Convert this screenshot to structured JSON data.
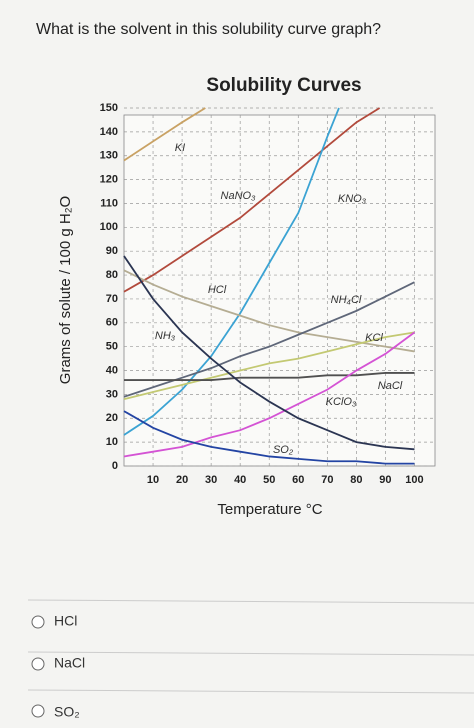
{
  "question": "What is the solvent in this solubility curve graph?",
  "options": [
    "HCl",
    "NaCl",
    "SO₂"
  ],
  "chart_data": {
    "type": "line",
    "title": "Solubility Curves",
    "x_label": "Temperature °C",
    "y_label": "Grams of solute / 100 g H₂O",
    "xlim": [
      0,
      105
    ],
    "ylim": [
      0,
      150
    ],
    "xticks": [
      10,
      20,
      30,
      40,
      50,
      60,
      70,
      80,
      90,
      100
    ],
    "yticks": [
      0,
      10,
      20,
      30,
      40,
      50,
      60,
      70,
      80,
      90,
      100,
      110,
      120,
      130,
      140,
      150
    ],
    "grid": true,
    "series": [
      {
        "name": "KI",
        "color": "#c9a264",
        "x": [
          0,
          10,
          20,
          28
        ],
        "values": [
          128,
          136,
          144,
          150
        ]
      },
      {
        "name": "NaNO₃",
        "color": "#b24a3c",
        "x": [
          0,
          10,
          20,
          30,
          40,
          50,
          60,
          70,
          80,
          88
        ],
        "values": [
          73,
          80,
          88,
          96,
          104,
          114,
          124,
          134,
          144,
          150
        ]
      },
      {
        "name": "KNO₃",
        "color": "#3ba3d3",
        "x": [
          0,
          10,
          20,
          30,
          40,
          50,
          60,
          70,
          74
        ],
        "values": [
          13,
          21,
          32,
          46,
          64,
          85,
          106,
          138,
          150
        ]
      },
      {
        "name": "HCl",
        "color": "#b5ad93",
        "x": [
          0,
          10,
          20,
          30,
          40,
          50,
          60,
          70,
          80,
          90,
          100
        ],
        "values": [
          82,
          76,
          71,
          67,
          63,
          59,
          56,
          54,
          52,
          50,
          48
        ]
      },
      {
        "name": "NH₄Cl",
        "color": "#5f6779",
        "x": [
          0,
          10,
          20,
          30,
          40,
          50,
          60,
          70,
          80,
          90,
          100
        ],
        "values": [
          29,
          33,
          37,
          41,
          46,
          50,
          55,
          60,
          65,
          71,
          77
        ]
      },
      {
        "name": "KCl",
        "color": "#c3c972",
        "x": [
          0,
          10,
          20,
          30,
          40,
          50,
          60,
          70,
          80,
          90,
          100
        ],
        "values": [
          28,
          31,
          34,
          37,
          40,
          43,
          45,
          48,
          51,
          54,
          56
        ]
      },
      {
        "name": "NaCl",
        "color": "#505050",
        "x": [
          0,
          10,
          20,
          30,
          40,
          50,
          60,
          70,
          80,
          90,
          100
        ],
        "values": [
          36,
          36,
          36,
          36,
          37,
          37,
          37,
          38,
          38,
          39,
          39
        ]
      },
      {
        "name": "KClO₃",
        "color": "#d453d4",
        "x": [
          0,
          10,
          20,
          30,
          40,
          50,
          60,
          70,
          80,
          90,
          100
        ],
        "values": [
          4,
          6,
          8,
          12,
          15,
          20,
          26,
          32,
          40,
          47,
          56
        ]
      },
      {
        "name": "NH₃",
        "color": "#2b3552",
        "x": [
          0,
          10,
          20,
          30,
          40,
          50,
          60,
          70,
          80,
          90,
          100
        ],
        "values": [
          88,
          70,
          56,
          45,
          35,
          27,
          20,
          15,
          10,
          8,
          7
        ]
      },
      {
        "name": "SO₂",
        "color": "#2344a3",
        "x": [
          0,
          10,
          20,
          30,
          40,
          50,
          60,
          70,
          80,
          90,
          100
        ],
        "values": [
          23,
          16,
          11,
          8,
          6,
          4,
          3,
          2,
          2,
          1,
          1
        ]
      }
    ]
  }
}
